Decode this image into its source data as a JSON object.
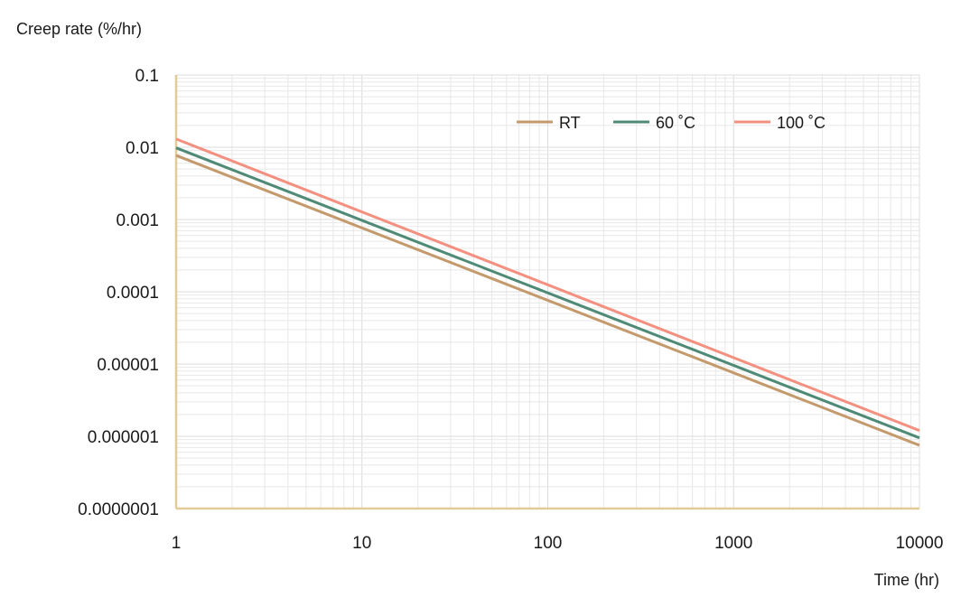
{
  "chart_data": {
    "type": "line",
    "title": "",
    "ylabel": "Creep rate (%/hr)",
    "xlabel": "Time (hr)",
    "x_scale": "log",
    "y_scale": "log",
    "xlim": [
      1,
      10000
    ],
    "ylim": [
      1e-07,
      0.1
    ],
    "x_ticks": [
      1,
      10,
      100,
      1000,
      10000
    ],
    "x_tick_labels": [
      "1",
      "10",
      "100",
      "1000",
      "10000"
    ],
    "y_ticks": [
      1e-07,
      1e-06,
      1e-05,
      0.0001,
      0.001,
      0.01,
      0.1
    ],
    "y_tick_labels": [
      "0.0000001",
      "0.000001",
      "0.00001",
      "0.0001",
      "0.001",
      "0.01",
      "0.1"
    ],
    "grid": true,
    "legend_position": "top-right",
    "series": [
      {
        "name": "RT",
        "color": "#c49a6c",
        "x": [
          1,
          10000
        ],
        "y": [
          0.0077,
          7.5e-07
        ]
      },
      {
        "name": "60 ˚C",
        "color": "#4e8a76",
        "x": [
          1,
          10000
        ],
        "y": [
          0.0098,
          9.5e-07
        ]
      },
      {
        "name": "100 ˚C",
        "color": "#f39080",
        "x": [
          1,
          10000
        ],
        "y": [
          0.013,
          1.2e-06
        ]
      }
    ],
    "axis_color": "#e2cc96",
    "grid_color": "#e8e8e8"
  }
}
